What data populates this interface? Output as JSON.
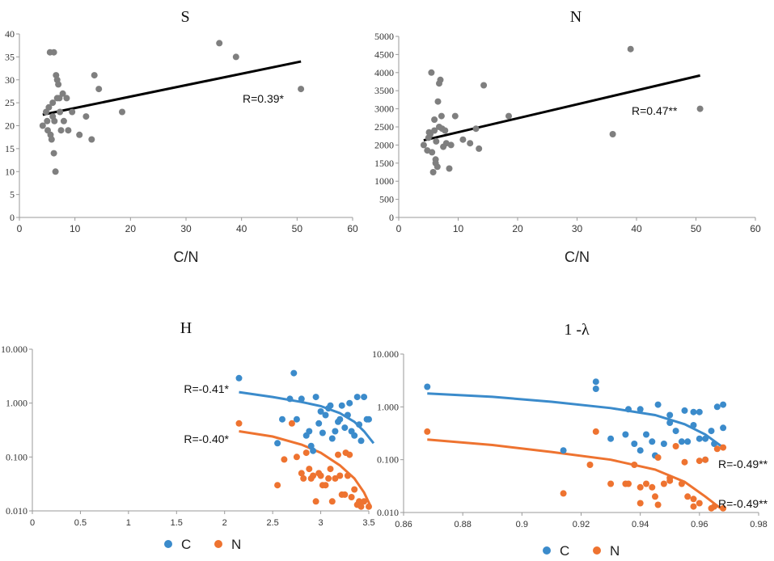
{
  "figure": "four-panel scatter plots",
  "chart_data": [
    {
      "id": "S",
      "type": "scatter",
      "title": "S",
      "xlabel": "C/N",
      "ylabel": "",
      "xlim": [
        0,
        60
      ],
      "ylim": [
        0,
        40
      ],
      "xticks": [
        "0",
        "10",
        "20",
        "30",
        "40",
        "50",
        "60"
      ],
      "yticks": [
        "0",
        "5",
        "10",
        "15",
        "20",
        "25",
        "30",
        "35",
        "40"
      ],
      "points_color": "#7f7f7f",
      "series": [
        {
          "name": "S",
          "x": [
            4.2,
            5.0,
            5.3,
            5.6,
            5.8,
            6.0,
            6.2,
            6.3,
            6.5,
            6.6,
            6.8,
            7.0,
            7.2,
            7.3,
            7.5,
            7.8,
            8.0,
            8.5,
            8.8,
            5.5,
            6.2,
            6.8,
            5.1,
            4.8,
            6.0,
            9.5,
            10.8,
            12.0,
            13.0,
            13.5,
            14.3,
            18.5,
            36.0,
            39.0,
            50.7
          ],
          "y": [
            20,
            21,
            24,
            18,
            17,
            25,
            14,
            21,
            10,
            31,
            30,
            29,
            26,
            23,
            19,
            27,
            21,
            26,
            19,
            36,
            36,
            26,
            19,
            23,
            22,
            23,
            18,
            22,
            17,
            31,
            28,
            23,
            38,
            35,
            28
          ]
        }
      ],
      "trendline": {
        "x": [
          4.2,
          50.7
        ],
        "y": [
          22.4,
          34.0
        ]
      },
      "annotation": "R=0.39*"
    },
    {
      "id": "N",
      "type": "scatter",
      "title": "N",
      "xlabel": "C/N",
      "ylabel": "",
      "xlim": [
        0,
        60
      ],
      "ylim": [
        0,
        5000
      ],
      "xticks": [
        "0",
        "10",
        "20",
        "30",
        "40",
        "50",
        "60"
      ],
      "yticks": [
        "0",
        "500",
        "1000",
        "1500",
        "2000",
        "2500",
        "3000",
        "3500",
        "4000",
        "4500",
        "5000"
      ],
      "points_color": "#7f7f7f",
      "series": [
        {
          "name": "N",
          "x": [
            4.2,
            5.0,
            5.3,
            5.6,
            5.8,
            6.0,
            6.2,
            6.3,
            6.5,
            6.6,
            6.8,
            7.0,
            7.2,
            7.3,
            7.5,
            7.8,
            8.0,
            8.5,
            8.8,
            5.5,
            6.2,
            6.8,
            5.1,
            4.8,
            6.0,
            9.5,
            10.8,
            12.0,
            13.0,
            13.5,
            14.3,
            18.5,
            36.0,
            39.0,
            50.7
          ],
          "y": [
            2000,
            2200,
            2300,
            1800,
            1250,
            2400,
            1500,
            2100,
            1400,
            3200,
            3700,
            3800,
            2800,
            2450,
            1950,
            2400,
            2050,
            1350,
            2000,
            4000,
            1600,
            2500,
            2350,
            1850,
            2700,
            2800,
            2150,
            2050,
            2450,
            1900,
            3650,
            2800,
            2300,
            4650,
            3000
          ]
        }
      ],
      "trendline": {
        "x": [
          4.2,
          50.7
        ],
        "y": [
          2130,
          3920
        ]
      },
      "annotation": "R=0.47**"
    },
    {
      "id": "H",
      "type": "scatter",
      "title": "H",
      "xlabel": "",
      "ylabel": "",
      "yscale": "log",
      "xlim": [
        0,
        3.5
      ],
      "ylim": [
        0.01,
        10
      ],
      "xticks": [
        "0",
        "0.5",
        "1",
        "1.5",
        "2",
        "2.5",
        "3",
        "3.5"
      ],
      "yticks": [
        "0.010",
        "0.100",
        "1.000",
        "10.000"
      ],
      "series": [
        {
          "name": "C",
          "color": "#3b8bcb",
          "x": [
            2.15,
            2.55,
            2.72,
            2.68,
            2.75,
            2.8,
            2.85,
            2.9,
            2.95,
            3.0,
            3.05,
            3.1,
            3.15,
            3.2,
            3.25,
            3.3,
            3.35,
            3.4,
            3.45,
            3.5,
            2.6,
            2.92,
            2.98,
            3.02,
            3.08,
            3.12,
            3.18,
            3.22,
            3.28,
            3.32,
            3.38,
            3.42,
            3.48,
            2.88
          ],
          "y": [
            2.9,
            0.18,
            3.6,
            1.2,
            0.5,
            1.2,
            0.25,
            0.16,
            1.3,
            0.7,
            0.6,
            0.9,
            0.3,
            0.5,
            0.35,
            1.0,
            0.25,
            0.4,
            1.3,
            0.5,
            0.5,
            0.13,
            0.42,
            0.28,
            0.8,
            0.22,
            0.45,
            0.9,
            0.6,
            0.3,
            1.3,
            0.2,
            0.5,
            0.3
          ]
        },
        {
          "name": "N",
          "color": "#ee7330",
          "x": [
            2.15,
            2.55,
            2.62,
            2.7,
            2.75,
            2.8,
            2.85,
            2.9,
            2.95,
            3.0,
            3.05,
            3.1,
            3.15,
            3.2,
            3.25,
            3.3,
            3.35,
            3.4,
            3.45,
            3.5,
            2.92,
            2.98,
            3.02,
            3.08,
            3.12,
            3.18,
            3.22,
            3.28,
            3.32,
            3.38,
            3.42,
            2.82,
            2.88,
            3.26
          ],
          "y": [
            0.42,
            0.03,
            0.09,
            0.42,
            0.1,
            0.05,
            0.12,
            0.04,
            0.015,
            0.045,
            0.03,
            0.06,
            0.04,
            0.045,
            0.02,
            0.11,
            0.025,
            0.015,
            0.015,
            0.012,
            0.045,
            0.05,
            0.03,
            0.04,
            0.015,
            0.11,
            0.02,
            0.045,
            0.018,
            0.013,
            0.012,
            0.04,
            0.06,
            0.12
          ]
        }
      ],
      "trendlines": [
        {
          "name": "C",
          "color": "#3b8bcb",
          "x": [
            2.15,
            2.5,
            2.8,
            3.0,
            3.2,
            3.35,
            3.45,
            3.55
          ],
          "y": [
            1.6,
            1.3,
            1.05,
            0.88,
            0.65,
            0.45,
            0.3,
            0.18
          ]
        },
        {
          "name": "N",
          "color": "#ee7330",
          "x": [
            2.15,
            2.5,
            2.8,
            3.0,
            3.2,
            3.35,
            3.45,
            3.52
          ],
          "y": [
            0.3,
            0.24,
            0.17,
            0.12,
            0.07,
            0.04,
            0.022,
            0.012
          ]
        }
      ],
      "annotations": [
        "R=-0.41*",
        "R=-0.40*"
      ],
      "legend": [
        {
          "label": "C",
          "color": "#3b8bcb"
        },
        {
          "label": "N",
          "color": "#ee7330"
        }
      ]
    },
    {
      "id": "1-lambda",
      "type": "scatter",
      "title": "1 -λ",
      "xlabel": "",
      "ylabel": "",
      "yscale": "log",
      "xlim": [
        0.86,
        0.98
      ],
      "ylim": [
        0.01,
        10
      ],
      "xticks": [
        "0.86",
        "0.88",
        "0.9",
        "0.92",
        "0.94",
        "0.96",
        "0.98"
      ],
      "yticks": [
        "0.010",
        "0.100",
        "1.000",
        "10.000"
      ],
      "series": [
        {
          "name": "C",
          "color": "#3b8bcb",
          "x": [
            0.868,
            0.914,
            0.925,
            0.925,
            0.93,
            0.935,
            0.938,
            0.94,
            0.942,
            0.944,
            0.946,
            0.948,
            0.95,
            0.952,
            0.954,
            0.956,
            0.958,
            0.96,
            0.962,
            0.964,
            0.966,
            0.968,
            0.94,
            0.945,
            0.955,
            0.96,
            0.965,
            0.968,
            0.936,
            0.95,
            0.958,
            0.962
          ],
          "y": [
            2.4,
            0.15,
            3.0,
            2.2,
            0.25,
            0.3,
            0.2,
            0.9,
            0.3,
            0.22,
            1.1,
            0.2,
            0.5,
            0.35,
            0.22,
            0.22,
            0.8,
            0.8,
            0.25,
            0.35,
            1.0,
            1.1,
            0.15,
            0.12,
            0.85,
            0.25,
            0.2,
            0.4,
            0.9,
            0.7,
            0.45,
            0.1
          ]
        },
        {
          "name": "N",
          "color": "#ee7330",
          "x": [
            0.868,
            0.914,
            0.923,
            0.925,
            0.93,
            0.935,
            0.938,
            0.94,
            0.942,
            0.944,
            0.946,
            0.948,
            0.95,
            0.952,
            0.954,
            0.956,
            0.958,
            0.96,
            0.962,
            0.964,
            0.966,
            0.968,
            0.94,
            0.945,
            0.955,
            0.96,
            0.965,
            0.968,
            0.936,
            0.95,
            0.946,
            0.958
          ],
          "y": [
            0.34,
            0.023,
            0.08,
            0.34,
            0.035,
            0.035,
            0.08,
            0.015,
            0.035,
            0.03,
            0.11,
            0.035,
            0.045,
            0.18,
            0.035,
            0.02,
            0.013,
            0.095,
            0.1,
            0.012,
            0.16,
            0.17,
            0.03,
            0.02,
            0.09,
            0.015,
            0.013,
            0.012,
            0.035,
            0.04,
            0.014,
            0.018
          ]
        }
      ],
      "trendlines": [
        {
          "name": "C",
          "color": "#3b8bcb",
          "x": [
            0.868,
            0.89,
            0.91,
            0.93,
            0.945,
            0.955,
            0.962,
            0.968
          ],
          "y": [
            1.8,
            1.55,
            1.25,
            0.95,
            0.7,
            0.47,
            0.3,
            0.17
          ]
        },
        {
          "name": "N",
          "color": "#ee7330",
          "x": [
            0.868,
            0.89,
            0.91,
            0.93,
            0.945,
            0.955,
            0.962,
            0.968
          ],
          "y": [
            0.24,
            0.19,
            0.14,
            0.1,
            0.065,
            0.038,
            0.02,
            0.011
          ]
        }
      ],
      "annotations": [
        "R=-0.49**",
        "R=-0.49**"
      ],
      "legend": [
        {
          "label": "C",
          "color": "#3b8bcb"
        },
        {
          "label": "N",
          "color": "#ee7330"
        }
      ]
    }
  ]
}
